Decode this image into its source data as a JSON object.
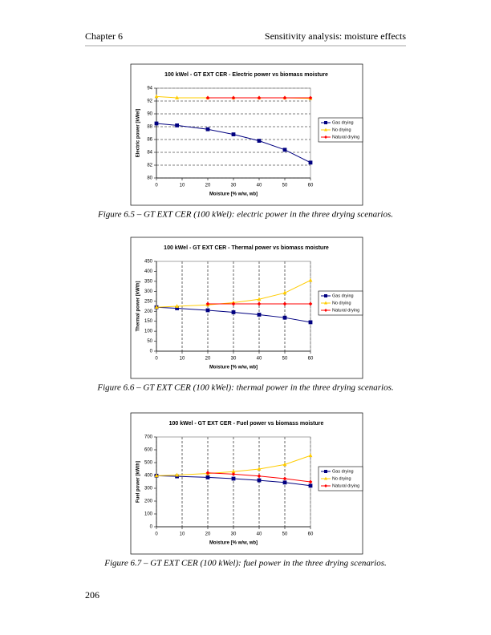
{
  "header": {
    "left": "Chapter 6",
    "right": "Sensitivity analysis: moisture effects"
  },
  "page_number": "206",
  "chart_data": [
    {
      "type": "line",
      "title": "100 kWel - GT EXT CER - Electric power vs biomass moisture",
      "caption": "Figure 6.5 – GT EXT CER (100 kWel): electric power in the three drying scenarios.",
      "xlabel": "Moisture [% w/w, wb]",
      "ylabel": "Electric power [kWel]",
      "xlim": [
        0,
        60
      ],
      "xticks": [
        0,
        10,
        20,
        30,
        40,
        50,
        60
      ],
      "ylim": [
        80,
        94
      ],
      "yticks": [
        80,
        82,
        84,
        86,
        88,
        90,
        92,
        94
      ],
      "grid": "y",
      "series": [
        {
          "name": "Gas drying",
          "color": "#000080",
          "marker": "square",
          "x": [
            0,
            8,
            20,
            30,
            40,
            50,
            60
          ],
          "values": [
            88.5,
            88.2,
            87.6,
            86.8,
            85.8,
            84.4,
            82.4
          ]
        },
        {
          "name": "No drying",
          "color": "#ffcc00",
          "marker": "triangle",
          "x": [
            0,
            8,
            20,
            30,
            40,
            50,
            60
          ],
          "values": [
            92.7,
            92.5,
            92.5,
            92.5,
            92.5,
            92.5,
            92.4
          ]
        },
        {
          "name": "Natural drying",
          "color": "#ff0000",
          "marker": "diamond",
          "x": [
            20,
            30,
            40,
            50,
            60
          ],
          "values": [
            92.5,
            92.5,
            92.5,
            92.5,
            92.5
          ]
        }
      ]
    },
    {
      "type": "line",
      "title": "100 kWel - GT EXT CER - Thermal power vs biomass moisture",
      "caption": "Figure 6.6 – GT EXT CER (100 kWel): thermal power in the three drying scenarios.",
      "xlabel": "Moisture [% w/w, wb]",
      "ylabel": "Thermal power [kWth]",
      "xlim": [
        0,
        60
      ],
      "xticks": [
        0,
        10,
        20,
        30,
        40,
        50,
        60
      ],
      "ylim": [
        0,
        450
      ],
      "yticks": [
        0,
        50,
        100,
        150,
        200,
        250,
        300,
        350,
        400,
        450
      ],
      "grid": "x",
      "series": [
        {
          "name": "Gas drying",
          "color": "#000080",
          "marker": "square",
          "x": [
            0,
            8,
            20,
            30,
            40,
            50,
            60
          ],
          "values": [
            220,
            215,
            205,
            195,
            183,
            168,
            145
          ]
        },
        {
          "name": "No drying",
          "color": "#ffcc00",
          "marker": "triangle",
          "x": [
            0,
            8,
            20,
            30,
            40,
            50,
            60
          ],
          "values": [
            220,
            225,
            232,
            243,
            260,
            292,
            355
          ]
        },
        {
          "name": "Natural drying",
          "color": "#ff0000",
          "marker": "diamond",
          "x": [
            20,
            30,
            40,
            50,
            60
          ],
          "values": [
            237,
            237,
            237,
            237,
            237
          ]
        }
      ]
    },
    {
      "type": "line",
      "title": "100 kWel - GT EXT CER - Fuel power vs biomass moisture",
      "caption": "Figure 6.7 – GT EXT CER (100 kWel): fuel power in the three drying scenarios.",
      "xlabel": "Moisture [% w/w, wb]",
      "ylabel": "Fuel power [kWth]",
      "xlim": [
        0,
        60
      ],
      "xticks": [
        0,
        10,
        20,
        30,
        40,
        50,
        60
      ],
      "ylim": [
        0,
        700
      ],
      "yticks": [
        0,
        100,
        200,
        300,
        400,
        500,
        600,
        700
      ],
      "grid": "x",
      "series": [
        {
          "name": "Gas drying",
          "color": "#000080",
          "marker": "square",
          "x": [
            0,
            8,
            20,
            30,
            40,
            50,
            60
          ],
          "values": [
            398,
            393,
            385,
            375,
            362,
            345,
            320
          ]
        },
        {
          "name": "No drying",
          "color": "#ffcc00",
          "marker": "triangle",
          "x": [
            0,
            8,
            20,
            30,
            40,
            50,
            60
          ],
          "values": [
            398,
            403,
            415,
            430,
            450,
            485,
            555
          ]
        },
        {
          "name": "Natural drying",
          "color": "#ff0000",
          "marker": "diamond",
          "x": [
            20,
            30,
            40,
            50,
            60
          ],
          "values": [
            420,
            410,
            395,
            375,
            350
          ]
        }
      ]
    }
  ]
}
